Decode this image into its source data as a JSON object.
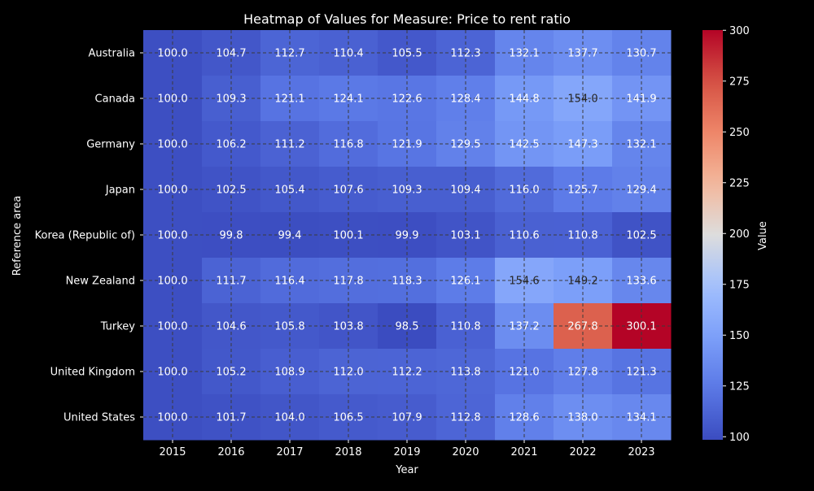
{
  "chart_data": {
    "type": "heatmap",
    "title": "Heatmap of Values for Measure: Price to rent ratio",
    "xlabel": "Year",
    "ylabel": "Reference area",
    "x": [
      "2015",
      "2016",
      "2017",
      "2018",
      "2019",
      "2020",
      "2021",
      "2022",
      "2023"
    ],
    "y": [
      "Australia",
      "Canada",
      "Germany",
      "Japan",
      "Korea (Republic of)",
      "New Zealand",
      "Turkey",
      "United Kingdom",
      "United States"
    ],
    "values": [
      [
        100.0,
        104.7,
        112.7,
        110.4,
        105.5,
        112.3,
        132.1,
        137.7,
        130.7
      ],
      [
        100.0,
        109.3,
        121.1,
        124.1,
        122.6,
        128.4,
        144.8,
        154.0,
        141.9
      ],
      [
        100.0,
        106.2,
        111.2,
        116.8,
        121.9,
        129.5,
        142.5,
        147.3,
        132.1
      ],
      [
        100.0,
        102.5,
        105.4,
        107.6,
        109.3,
        109.4,
        116.0,
        125.7,
        129.4
      ],
      [
        100.0,
        99.8,
        99.4,
        100.1,
        99.9,
        103.1,
        110.6,
        110.8,
        102.5
      ],
      [
        100.0,
        111.7,
        116.4,
        117.8,
        118.3,
        126.1,
        154.6,
        149.2,
        133.6
      ],
      [
        100.0,
        104.6,
        105.8,
        103.8,
        98.5,
        110.8,
        137.2,
        267.8,
        300.1
      ],
      [
        100.0,
        105.2,
        108.9,
        112.0,
        112.2,
        113.8,
        121.0,
        127.8,
        121.3
      ],
      [
        100.0,
        101.7,
        104.0,
        106.5,
        107.9,
        112.8,
        128.6,
        138.0,
        134.1
      ]
    ],
    "colorbar": {
      "label": "Value",
      "range": [
        98.5,
        300.1
      ],
      "ticks": [
        100,
        125,
        150,
        175,
        200,
        225,
        250,
        275,
        300
      ],
      "colormap": "coolwarm"
    },
    "grid": true
  }
}
